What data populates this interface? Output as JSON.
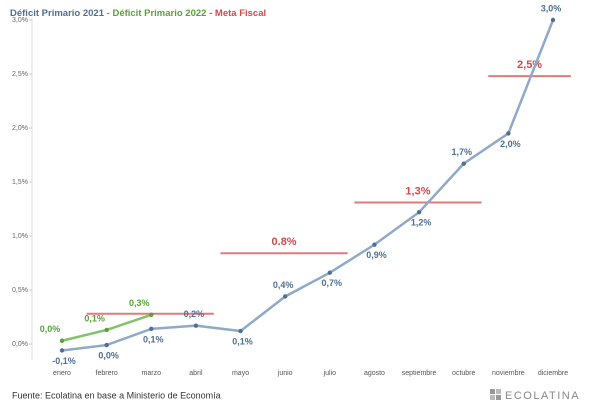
{
  "chart_data": {
    "type": "line",
    "legend_separator": "-",
    "categories": [
      "enero",
      "febrero",
      "marzo",
      "abril",
      "mayo",
      "junio",
      "julio",
      "agosto",
      "septiembre",
      "octubre",
      "noviembre",
      "diciembre"
    ],
    "series": [
      {
        "name": "Déficit Primario 2021",
        "color": "#8fa9c8",
        "label_color": "#4f6f93",
        "values": [
          -0.06,
          -0.01,
          0.14,
          0.17,
          0.12,
          0.44,
          0.66,
          0.92,
          1.22,
          1.67,
          1.95,
          3.0
        ],
        "value_labels": [
          "-0,1%",
          "0,0%",
          "0,1%",
          "0,2%",
          "0,1%",
          "0,4%",
          "0,7%",
          "0,9%",
          "1,2%",
          "1,7%",
          "2,0%",
          "3,0%"
        ]
      },
      {
        "name": "Déficit Primario 2022",
        "color": "#82c26c",
        "label_color": "#5aa03c",
        "values": [
          0.03,
          0.13,
          0.27,
          null,
          null,
          null,
          null,
          null,
          null,
          null,
          null,
          null
        ],
        "value_labels": [
          "0,0%",
          "0,1%",
          "0,3%",
          null,
          null,
          null,
          null,
          null,
          null,
          null,
          null,
          null
        ]
      }
    ],
    "targets": {
      "name": "Meta Fiscal",
      "color": "#e07b7b",
      "label_color": "#d24a4a",
      "segments": [
        {
          "from": "febrero",
          "to": "abril",
          "value": 0.28
        },
        {
          "from": "mayo",
          "to": "julio",
          "value": 0.84,
          "label": "0.8%"
        },
        {
          "from": "agosto",
          "to": "octubre",
          "value": 1.31,
          "label": "1,3%"
        },
        {
          "from": "noviembre",
          "to": "diciembre",
          "value": 2.48,
          "label": "2,5%"
        }
      ]
    },
    "ylim": [
      0,
      3
    ],
    "yticks": [
      {
        "value": 0,
        "label": "0,0%"
      },
      {
        "value": 0.5,
        "label": "0,5%"
      },
      {
        "value": 1,
        "label": "1,0%"
      },
      {
        "value": 1.5,
        "label": "1,5%"
      },
      {
        "value": 2,
        "label": "2,0%"
      },
      {
        "value": 2.5,
        "label": "2,5%"
      },
      {
        "value": 3,
        "label": "3,0%"
      }
    ],
    "source": "Fuente: Ecolatina en base a Ministerio de Economía",
    "logo": "ECOLATINA"
  }
}
